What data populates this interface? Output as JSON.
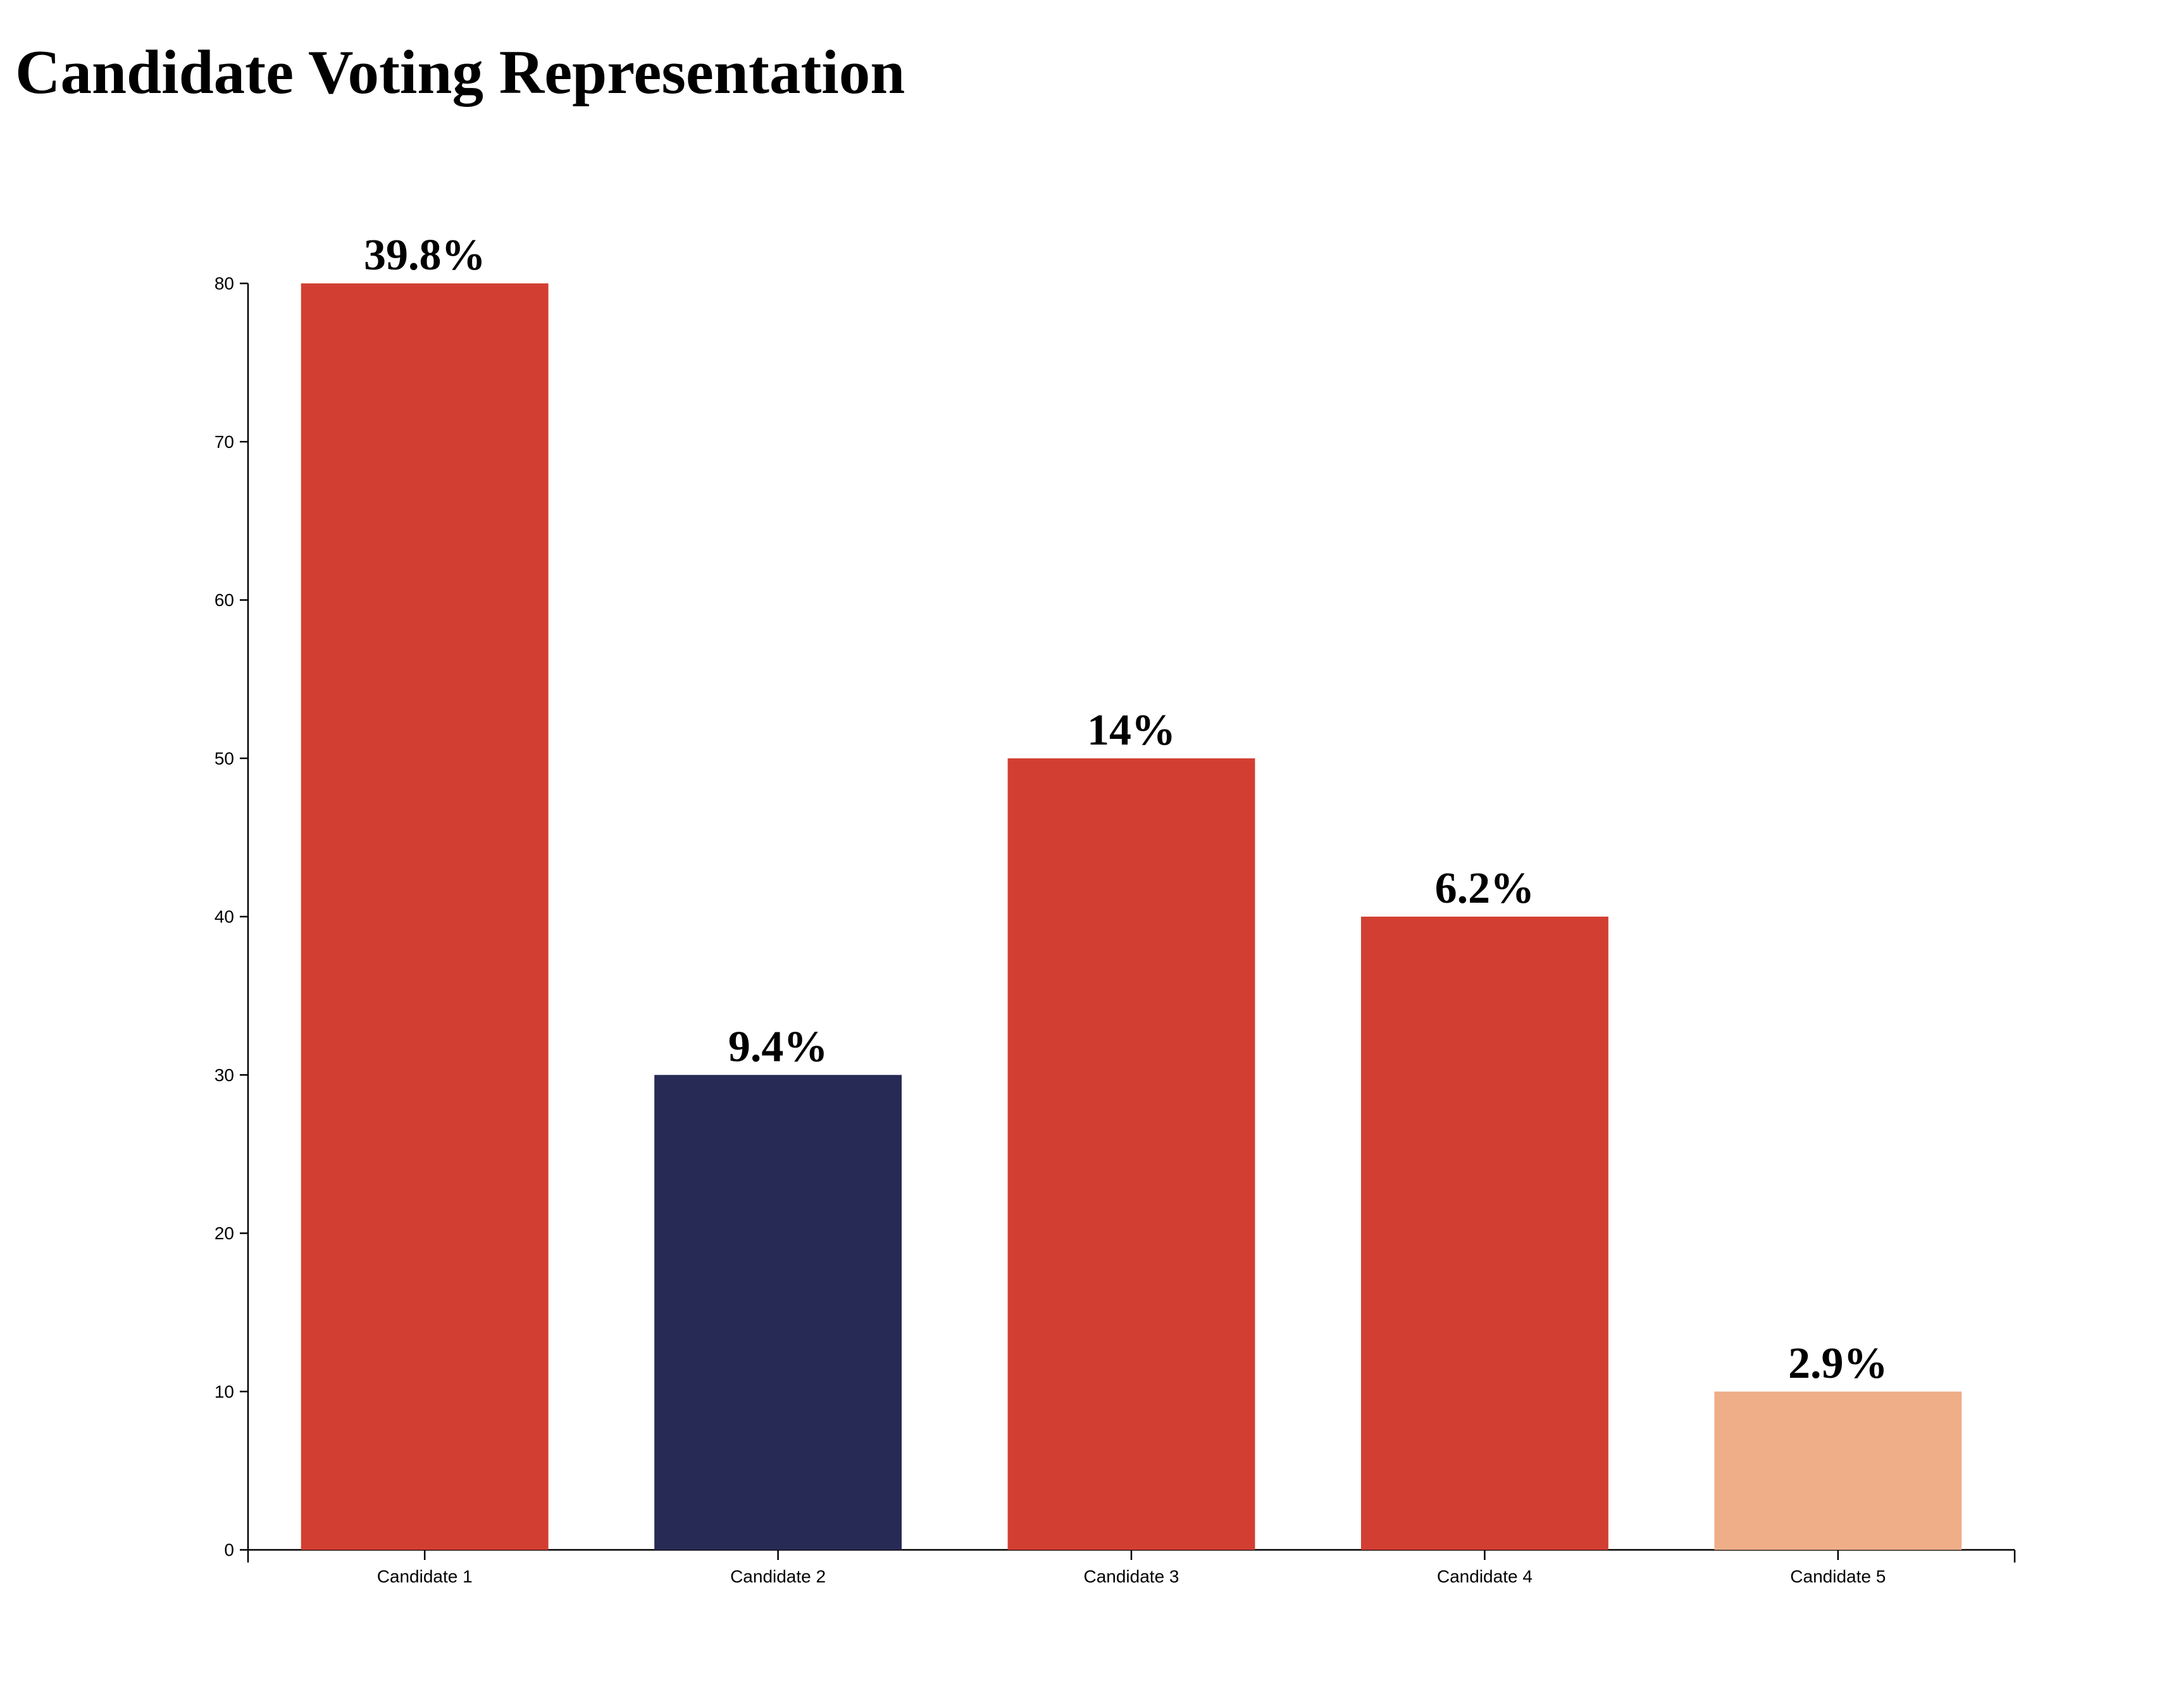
{
  "chart_data": {
    "type": "bar",
    "title": "Candidate Voting Representation",
    "xlabel": "",
    "ylabel": "",
    "categories": [
      "Candidate 1",
      "Candidate 2",
      "Candidate 3",
      "Candidate 4",
      "Candidate 5"
    ],
    "values": [
      80,
      30,
      50,
      40,
      10
    ],
    "data_labels": [
      "39.8%",
      "9.4%",
      "14%",
      "6.2%",
      "2.9%"
    ],
    "colors": [
      "#d23f32",
      "#282a56",
      "#d23f32",
      "#d23f32",
      "#efae88"
    ],
    "ylim": [
      0,
      80
    ],
    "yticks": [
      0,
      10,
      20,
      30,
      40,
      50,
      60,
      70,
      80
    ],
    "grid": false,
    "legend": "none"
  }
}
